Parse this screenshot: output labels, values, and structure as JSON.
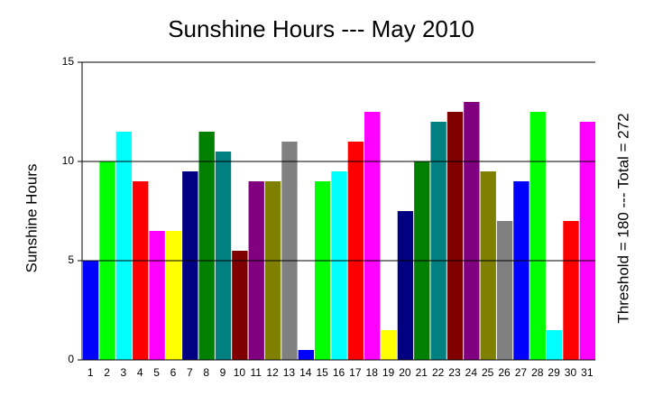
{
  "chart_data": {
    "type": "bar",
    "title": "Sunshine Hours --- May 2010",
    "y_label": "Sunshine Hours",
    "annotation": "Threshold = 180 --- Total = 272",
    "categories": [
      "1",
      "2",
      "3",
      "4",
      "5",
      "6",
      "7",
      "8",
      "9",
      "10",
      "11",
      "12",
      "13",
      "14",
      "15",
      "16",
      "17",
      "18",
      "19",
      "20",
      "21",
      "22",
      "23",
      "24",
      "25",
      "26",
      "27",
      "28",
      "29",
      "30",
      "31"
    ],
    "values": [
      5,
      10,
      11.5,
      9,
      6.5,
      6.5,
      9.5,
      11.5,
      10.5,
      5.5,
      9,
      9,
      11,
      0.5,
      9,
      9.5,
      11,
      12.5,
      1.5,
      7.5,
      10,
      12,
      12.5,
      13,
      9.5,
      7,
      9,
      12.5,
      1.5,
      7,
      12
    ],
    "colors": [
      "#0000ff",
      "#00ff00",
      "#00ffff",
      "#ff0000",
      "#ff00ff",
      "#ffff00",
      "#000080",
      "#008000",
      "#008080",
      "#800000",
      "#800080",
      "#808000",
      "#808080",
      "#0000ff",
      "#00ff00",
      "#00ffff",
      "#ff0000",
      "#ff00ff",
      "#ffff00",
      "#000080",
      "#008000",
      "#008080",
      "#800000",
      "#800080",
      "#808000",
      "#808080",
      "#0000ff",
      "#00ff00",
      "#00ffff",
      "#ff0000",
      "#ff00ff"
    ],
    "ylim": [
      0,
      15
    ],
    "yticks": [
      0,
      5,
      10,
      15
    ],
    "grid": true
  }
}
